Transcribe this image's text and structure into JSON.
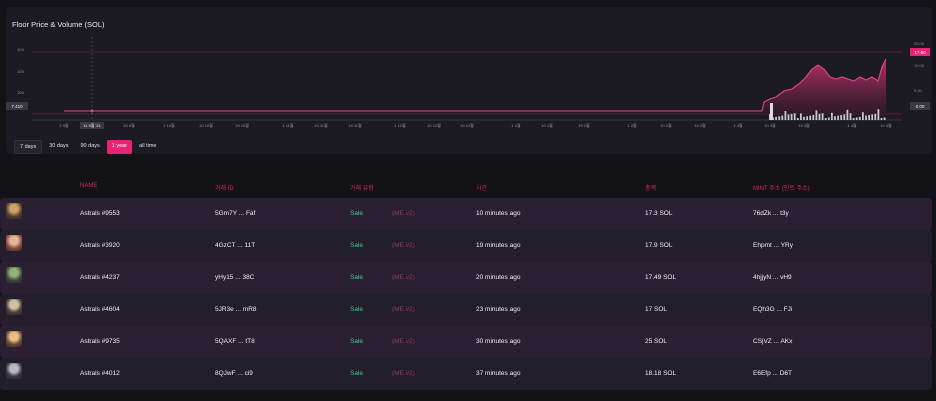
{
  "chart": {
    "title": "Floor Price & Volume (SOL)",
    "left_axis": [
      "600",
      "400",
      "200"
    ],
    "right_axis": [
      "20.00",
      "15.00",
      "10.00",
      "5.00"
    ],
    "current_left": "7.410",
    "current_right": "0.00",
    "marker_right": "17.60",
    "crosshair_label": "11 9월 '21",
    "x_ticks": [
      "2 9월",
      "20 9월",
      "1 10월",
      "10 10월",
      "19 10월",
      "1 11월",
      "10 11월",
      "19 11월",
      "1 12월",
      "10 12월",
      "19 12월",
      "1 1월",
      "10 1월",
      "19 1월",
      "1 2월",
      "10 2월",
      "19 2월",
      "1 3월",
      "10 3월",
      "19 3월",
      "1 4월",
      "10 4월"
    ],
    "colors": {
      "accent": "#e42575",
      "line": "#e0468a"
    }
  },
  "ranges": [
    "7 days",
    "30 days",
    "90 days",
    "1 year",
    "all time"
  ],
  "active_range": "1 year",
  "table": {
    "headers": {
      "name": "NAME",
      "tx": "거래 ID",
      "type": "거래 유형",
      "time": "시간",
      "amount": "총액",
      "mint": "MINT 주소 (민트 주소)"
    },
    "rows": [
      {
        "name": "Astrals #9553",
        "tx": "5Gm7Y ... Faf",
        "kind": "Sale",
        "market": "(ME v2)",
        "time": "10 minutes ago",
        "amount": "17.3 SOL",
        "mint": "76dZk ... t3y"
      },
      {
        "name": "Astrals #3920",
        "tx": "4GzCT ... 11T",
        "kind": "Sale",
        "market": "(ME v2)",
        "time": "19 minutes ago",
        "amount": "17.9 SOL",
        "mint": "Ehpmt ... YRy"
      },
      {
        "name": "Astrals #4237",
        "tx": "yHy15 ... 38C",
        "kind": "Sale",
        "market": "(ME v2)",
        "time": "20 minutes ago",
        "amount": "17.49 SOL",
        "mint": "4hjjyN ... vH9"
      },
      {
        "name": "Astrals #4604",
        "tx": "5JR3e ... mR8",
        "kind": "Sale",
        "market": "(ME v2)",
        "time": "23 minutes ago",
        "amount": "17 SOL",
        "mint": "EQh3G ... FJi"
      },
      {
        "name": "Astrals #9735",
        "tx": "5QAXF ... tT8",
        "kind": "Sale",
        "market": "(ME v2)",
        "time": "30 minutes ago",
        "amount": "25 SOL",
        "mint": "CSjVZ ... AKx"
      },
      {
        "name": "Astrals #4012",
        "tx": "8QJwF ... ci9",
        "kind": "Sale",
        "market": "(ME v2)",
        "time": "37 minutes ago",
        "amount": "18.18 SOL",
        "mint": "E6Efp ... D6T"
      }
    ]
  }
}
